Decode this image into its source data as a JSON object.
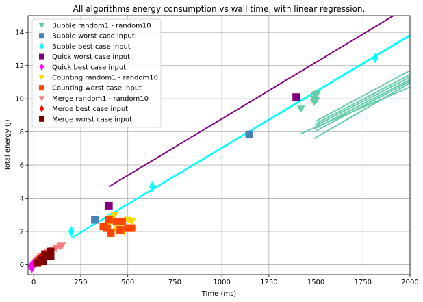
{
  "chart_data": {
    "type": "scatter",
    "title": "All algorithms energy consumption vs wall time, with linear regression.",
    "xlabel": "Time (ms)",
    "ylabel": "Total energy (J)",
    "xlim": [
      -30,
      2000
    ],
    "ylim": [
      -0.6,
      15
    ],
    "xticks": [
      0,
      250,
      500,
      750,
      1000,
      1250,
      1500,
      1750,
      2000
    ],
    "yticks": [
      0,
      2,
      4,
      6,
      8,
      10,
      12,
      14
    ],
    "grid": true,
    "legend_position": "top-left",
    "series": [
      {
        "name": "Bubble random1 - random10",
        "color": "#66cdaa",
        "marker": "tri-down",
        "points": [
          [
            1420,
            9.4
          ],
          [
            1490,
            9.8
          ],
          [
            1495,
            10.2
          ],
          [
            1500,
            9.9
          ],
          [
            1505,
            10.3
          ],
          [
            1490,
            10.0
          ]
        ]
      },
      {
        "name": "Bubble worst case input",
        "color": "#4682b4",
        "marker": "square",
        "points": [
          [
            325,
            2.7
          ],
          [
            1145,
            7.85
          ]
        ]
      },
      {
        "name": "Bubble best case input",
        "color": "#00ffff",
        "marker": "diamond",
        "points": [
          [
            200,
            2.0
          ],
          [
            630,
            4.7
          ],
          [
            1815,
            12.45
          ]
        ]
      },
      {
        "name": "Quick worst case input",
        "color": "#800080",
        "marker": "square",
        "points": [
          [
            400,
            3.55
          ],
          [
            1395,
            10.1
          ]
        ]
      },
      {
        "name": "Quick best case input",
        "color": "#ff00ff",
        "marker": "diamond",
        "points": [
          [
            -15,
            -0.1
          ],
          [
            -5,
            0.0
          ],
          [
            0,
            0.1
          ],
          [
            5,
            0.15
          ],
          [
            -10,
            -0.2
          ],
          [
            10,
            0.2
          ]
        ]
      },
      {
        "name": "Counting random1 - random10",
        "color": "#ffd700",
        "marker": "tri-down",
        "points": [
          [
            400,
            2.5
          ],
          [
            430,
            3.0
          ],
          [
            450,
            2.2
          ],
          [
            480,
            2.0
          ],
          [
            500,
            2.7
          ],
          [
            520,
            2.6
          ],
          [
            440,
            2.1
          ],
          [
            410,
            2.8
          ]
        ]
      },
      {
        "name": "Counting worst case input",
        "color": "#ff4500",
        "marker": "square",
        "points": [
          [
            370,
            2.3
          ],
          [
            400,
            2.7
          ],
          [
            410,
            1.9
          ],
          [
            440,
            2.6
          ],
          [
            460,
            2.1
          ],
          [
            470,
            2.6
          ],
          [
            500,
            2.2
          ],
          [
            520,
            2.2
          ],
          [
            390,
            2.2
          ]
        ]
      },
      {
        "name": "Merge random1 - random10",
        "color": "#f08080",
        "marker": "tri-down",
        "points": [
          [
            20,
            0.3
          ],
          [
            40,
            0.5
          ],
          [
            60,
            0.7
          ],
          [
            80,
            0.8
          ],
          [
            100,
            0.9
          ],
          [
            120,
            1.0
          ],
          [
            140,
            1.1
          ],
          [
            150,
            1.15
          ],
          [
            30,
            0.4
          ]
        ]
      },
      {
        "name": "Merge best case input",
        "color": "#ff0000",
        "marker": "diamond",
        "points": [
          [
            10,
            0.1
          ],
          [
            20,
            0.2
          ],
          [
            30,
            0.3
          ],
          [
            40,
            0.4
          ],
          [
            50,
            0.5
          ],
          [
            60,
            0.6
          ]
        ]
      },
      {
        "name": "Merge worst case input",
        "color": "#800000",
        "marker": "square",
        "points": [
          [
            20,
            0.1
          ],
          [
            40,
            0.3
          ],
          [
            50,
            0.2
          ],
          [
            70,
            0.5
          ],
          [
            90,
            0.8
          ],
          [
            90,
            0.5
          ],
          [
            60,
            0.6
          ]
        ]
      }
    ],
    "regression_lines": [
      {
        "color": "#800080",
        "x": [
          400,
          2000
        ],
        "y": [
          4.7,
          15.6
        ]
      },
      {
        "color": "#00ffff",
        "x": [
          200,
          2000
        ],
        "y": [
          1.6,
          13.8
        ]
      },
      {
        "color": "#00ffff",
        "x": [
          205,
          2000
        ],
        "y": [
          1.65,
          13.85
        ]
      },
      {
        "color": "#66cdaa",
        "x": [
          1420,
          2000
        ],
        "y": [
          7.9,
          10.7
        ]
      },
      {
        "color": "#66cdaa",
        "x": [
          1490,
          2000
        ],
        "y": [
          7.6,
          10.95
        ]
      },
      {
        "color": "#66cdaa",
        "x": [
          1490,
          2000
        ],
        "y": [
          8.0,
          11.05
        ]
      },
      {
        "color": "#66cdaa",
        "x": [
          1495,
          2000
        ],
        "y": [
          8.2,
          11.15
        ]
      },
      {
        "color": "#66cdaa",
        "x": [
          1495,
          2000
        ],
        "y": [
          8.35,
          11.3
        ]
      },
      {
        "color": "#66cdaa",
        "x": [
          1500,
          2000
        ],
        "y": [
          8.5,
          11.45
        ]
      },
      {
        "color": "#66cdaa",
        "x": [
          1500,
          2000
        ],
        "y": [
          8.65,
          11.7
        ]
      }
    ]
  }
}
